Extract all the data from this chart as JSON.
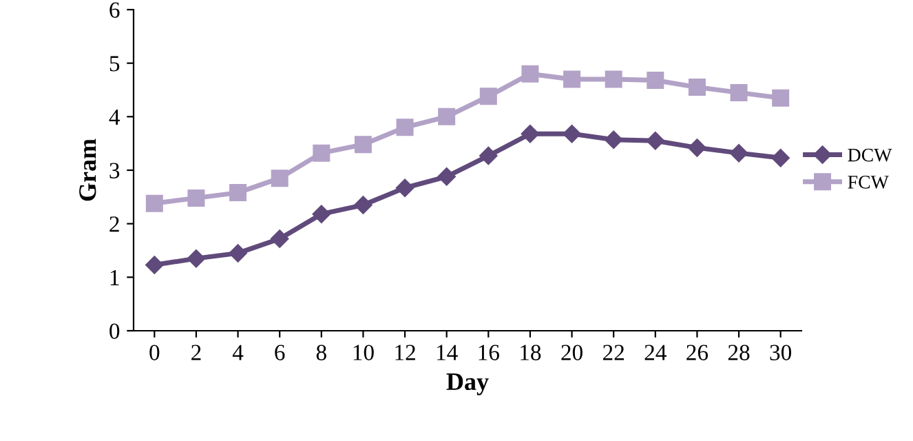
{
  "chart_data": {
    "type": "line",
    "xlabel": "Day",
    "ylabel": "Gram",
    "categories": [
      "0",
      "2",
      "4",
      "6",
      "8",
      "10",
      "12",
      "14",
      "16",
      "18",
      "20",
      "22",
      "24",
      "26",
      "28",
      "30"
    ],
    "series": [
      {
        "name": "DCW",
        "color": "#604a7b",
        "marker": "diamond",
        "values": [
          1.23,
          1.35,
          1.45,
          1.72,
          2.18,
          2.35,
          2.67,
          2.88,
          3.27,
          3.68,
          3.68,
          3.57,
          3.55,
          3.42,
          3.32,
          3.23
        ]
      },
      {
        "name": "FCW",
        "color": "#b3a2c7",
        "marker": "square",
        "values": [
          2.38,
          2.48,
          2.58,
          2.85,
          3.32,
          3.48,
          3.8,
          4.0,
          4.38,
          4.8,
          4.7,
          4.7,
          4.68,
          4.55,
          4.45,
          4.35
        ]
      }
    ],
    "ylim": [
      0,
      6
    ],
    "yticks": [
      0,
      1,
      2,
      3,
      4,
      5,
      6
    ],
    "grid": false,
    "legend": "right",
    "line_style": "solid"
  }
}
